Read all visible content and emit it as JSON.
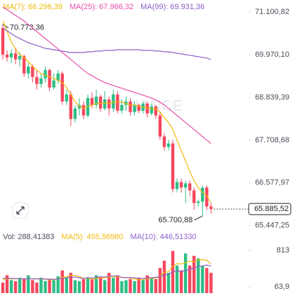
{
  "chart_data": [
    {
      "type": "candlestick",
      "open": [
        70679,
        69974,
        69900,
        70011,
        69845,
        69937,
        69474,
        69659,
        69381,
        69196,
        69344,
        69566,
        69103,
        69288,
        69474,
        68732,
        68918,
        68269,
        68547,
        68640,
        68362,
        68825,
        68640,
        68862,
        68547,
        68788,
        68547,
        68918,
        68491,
        68640,
        68732,
        68454,
        68640,
        68491,
        68677,
        68417,
        68603,
        68362,
        67806,
        67528,
        67620,
        66416,
        66601,
        66453,
        66564,
        66378,
        66045,
        66082,
        66453,
        65952
      ],
      "high": [
        70773.36,
        70085,
        70123,
        70160,
        70030,
        69974,
        69752,
        69715,
        69566,
        69474,
        69659,
        69604,
        69474,
        69566,
        69529,
        69048,
        69010,
        68640,
        68825,
        68732,
        68918,
        68973,
        69048,
        68918,
        69010,
        68862,
        69048,
        69010,
        68788,
        68862,
        68825,
        68732,
        68677,
        68732,
        68732,
        68677,
        68640,
        68454,
        67898,
        67713,
        67713,
        66694,
        66694,
        66638,
        66638,
        66453,
        66138,
        66508,
        66508,
        66045
      ],
      "low": [
        69845,
        69789,
        69752,
        69715,
        69659,
        69381,
        69344,
        69233,
        69048,
        69103,
        69233,
        69010,
        69048,
        69196,
        68640,
        68640,
        68084,
        68176,
        68362,
        68269,
        68306,
        68547,
        68547,
        68454,
        68491,
        68362,
        68454,
        68417,
        68417,
        68491,
        68362,
        68362,
        68417,
        68417,
        68306,
        68362,
        68269,
        67713,
        67435,
        67435,
        66323,
        66323,
        66323,
        66045,
        66230,
        65859,
        65952,
        65700.88,
        65859,
        65760
      ],
      "close": [
        69974,
        69900,
        70011,
        69845,
        69937,
        69474,
        69659,
        69381,
        69196,
        69344,
        69566,
        69103,
        69288,
        69474,
        68732,
        68918,
        68269,
        68547,
        68640,
        68362,
        68825,
        68640,
        68862,
        68547,
        68788,
        68547,
        68918,
        68491,
        68640,
        68732,
        68454,
        68640,
        68491,
        68677,
        68417,
        68603,
        68362,
        67806,
        67528,
        67620,
        66416,
        66601,
        66453,
        66564,
        66378,
        66045,
        66082,
        66453,
        65952,
        65885.52
      ],
      "up_color": "#2ebd85",
      "down_color": "#f6465d",
      "series": [
        {
          "name": "MA(7): 66.296,39",
          "color": "#f0b90b",
          "values": [
            70864,
            70586,
            70308,
            70123,
            69974,
            69900,
            69789,
            69659,
            69566,
            69474,
            69418,
            69381,
            69344,
            69288,
            69233,
            69103,
            68918,
            68732,
            68603,
            68547,
            68603,
            68640,
            68677,
            68677,
            68695,
            68677,
            68714,
            68732,
            68714,
            68677,
            68640,
            68640,
            68603,
            68584,
            68566,
            68547,
            68529,
            68454,
            68306,
            68176,
            67991,
            67713,
            67435,
            67157,
            66879,
            66638,
            66453,
            66323,
            66230,
            66045
          ]
        },
        {
          "name": "MA(25): 67.966,32",
          "color": "#e64ea8",
          "values": [
            71235,
            71161,
            71086,
            71012,
            70938,
            70864,
            70771,
            70679,
            70586,
            70493,
            70401,
            70308,
            70215,
            70123,
            70030,
            69937,
            69845,
            69752,
            69659,
            69566,
            69474,
            69418,
            69344,
            69288,
            69233,
            69196,
            69158,
            69121,
            69084,
            69048,
            69010,
            68973,
            68936,
            68899,
            68862,
            68825,
            68770,
            68714,
            68640,
            68547,
            68454,
            68362,
            68269,
            68176,
            68084,
            67991,
            67898,
            67806,
            67713,
            67620
          ]
        },
        {
          "name": "MA(99): 69.931,36",
          "color": "#8c5fc8",
          "values": [
            70679,
            70605,
            70530,
            70456,
            70401,
            70345,
            70289,
            70252,
            70215,
            70178,
            70141,
            70123,
            70104,
            70085,
            70067,
            70048,
            70030,
            70030,
            70030,
            70030,
            70048,
            70048,
            70067,
            70067,
            70085,
            70085,
            70085,
            70104,
            70104,
            70104,
            70104,
            70104,
            70104,
            70085,
            70085,
            70085,
            70067,
            70067,
            70048,
            70048,
            70030,
            70011,
            69993,
            69974,
            69956,
            69937,
            69919,
            69900,
            69882,
            69845
          ]
        }
      ],
      "ylim": [
        65200,
        71420
      ],
      "yticks": [
        {
          "value": 71100.82,
          "label": "71.100,82"
        },
        {
          "value": 69970.1,
          "label": "69.970,10"
        },
        {
          "value": 68839.39,
          "label": "68.839,39"
        },
        {
          "value": 67708.68,
          "label": "67.708,68"
        },
        {
          "value": 66577.97,
          "label": "66.577,97"
        },
        {
          "value": 65447.25,
          "label": "65.447,25"
        }
      ],
      "last_price": {
        "value": 65885.52,
        "label": "65.885,52"
      },
      "high_mark": {
        "value": 70773.36,
        "label": "70.773,36"
      },
      "low_mark": {
        "value": 65700.88,
        "label": "65.700,88"
      },
      "watermark": "BINANCE"
    },
    {
      "type": "bar",
      "name": "Vol: 288,41383",
      "values": [
        150,
        300,
        200,
        180,
        250,
        220,
        300,
        200,
        150,
        250,
        180,
        220,
        200,
        280,
        400,
        250,
        350,
        200,
        180,
        220,
        250,
        230,
        300,
        260,
        200,
        350,
        250,
        300,
        180,
        200,
        220,
        180,
        250,
        200,
        300,
        250,
        220,
        450,
        600,
        350,
        800,
        500,
        400,
        750,
        500,
        700,
        650,
        500,
        450,
        350
      ],
      "series": [
        {
          "name": "MA(5): 455,56980",
          "color": "#f0b90b",
          "values": [
            216,
            226,
            226,
            230,
            226,
            230,
            234,
            230,
            224,
            224,
            220,
            200,
            210,
            226,
            256,
            266,
            296,
            296,
            276,
            240,
            240,
            216,
            236,
            252,
            248,
            268,
            272,
            272,
            257,
            256,
            240,
            226,
            206,
            210,
            230,
            236,
            244,
            284,
            364,
            374,
            484,
            540,
            530,
            560,
            590,
            570,
            620,
            620,
            610,
            530
          ]
        },
        {
          "name": "MA(10): 446,51330",
          "color": "#8c5fc8",
          "values": [
            240,
            240,
            235,
            232,
            230,
            228,
            230,
            228,
            226,
            226,
            224,
            220,
            218,
            225,
            238,
            248,
            262,
            263,
            250,
            232,
            253,
            241,
            256,
            269,
            262,
            283,
            284,
            290,
            254,
            248,
            254,
            249,
            239,
            231,
            244,
            252,
            258,
            278,
            310,
            318,
            372,
            390,
            387,
            395,
            420,
            445,
            483,
            488,
            511,
            490
          ]
        }
      ],
      "ylim": [
        -66,
        1000
      ],
      "yticks": [
        813,
        {
          "value": 63.9,
          "label": "63,9"
        }
      ]
    }
  ]
}
